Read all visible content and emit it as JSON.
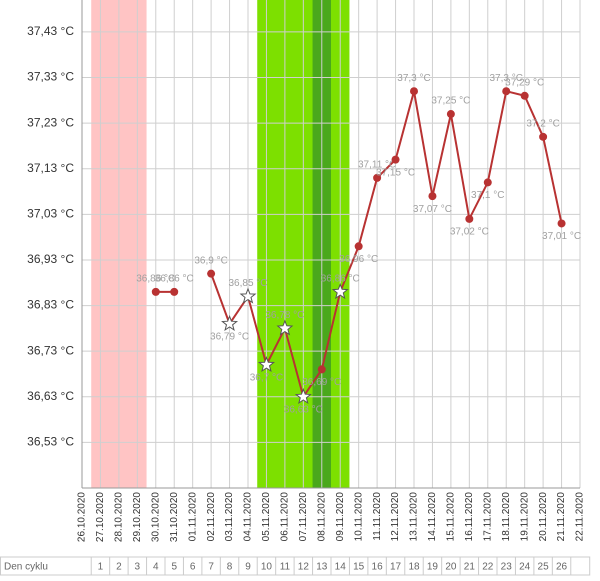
{
  "chart_data": {
    "type": "line",
    "categories": [
      "26.10.2020",
      "27.10.2020",
      "28.10.2020",
      "29.10.2020",
      "30.10.2020",
      "31.10.2020",
      "01.11.2020",
      "02.11.2020",
      "03.11.2020",
      "04.11.2020",
      "05.11.2020",
      "06.11.2020",
      "07.11.2020",
      "08.11.2020",
      "09.11.2020",
      "10.11.2020",
      "11.11.2020",
      "12.11.2020",
      "13.11.2020",
      "14.11.2020",
      "15.11.2020",
      "16.11.2020",
      "17.11.2020",
      "18.11.2020",
      "19.11.2020",
      "20.11.2020",
      "21.11.2020",
      "22.11.2020"
    ],
    "series": [
      {
        "color": "#b83232",
        "values": [
          null,
          null,
          null,
          null,
          36.86,
          36.86,
          null,
          36.9,
          36.79,
          36.85,
          36.7,
          36.78,
          36.63,
          36.69,
          36.86,
          36.96,
          37.11,
          37.15,
          37.3,
          37.07,
          37.25,
          37.02,
          37.1,
          37.3,
          37.29,
          37.2,
          37.01,
          null
        ],
        "value_labels": [
          null,
          null,
          null,
          null,
          "36,86 °C",
          "36,86 °C",
          null,
          "36,9 °C",
          "36,79 °C",
          "36,85 °C",
          "36,7 °C",
          "36,78 °C",
          "36,63 °C",
          "36,69 °C",
          "36,86 °C",
          "36,96 °C",
          "37,11 °C",
          "37,15 °C",
          "37,3 °C",
          "37,07 °C",
          "37,25 °C",
          "37,02 °C",
          "37,1 °C",
          "37,3 °C",
          "37,29 °C",
          "37,2 °C",
          "37,01 °C",
          null
        ],
        "markers": [
          null,
          null,
          null,
          null,
          "circle",
          "circle",
          null,
          "circle",
          "star",
          "star",
          "star",
          "star",
          "star",
          "circle",
          "star",
          "circle",
          "circle",
          "circle",
          "circle",
          "circle",
          "circle",
          "circle",
          "circle",
          "circle",
          "circle",
          "circle",
          "circle",
          null
        ]
      }
    ],
    "ylim": [
      36.43,
      37.5
    ],
    "yticks": [
      {
        "value": 36.53,
        "label": "36,53 °C"
      },
      {
        "value": 36.63,
        "label": "36,63 °C"
      },
      {
        "value": 36.73,
        "label": "36,73 °C"
      },
      {
        "value": 36.83,
        "label": "36,83 °C"
      },
      {
        "value": 36.93,
        "label": "36,93 °C"
      },
      {
        "value": 37.03,
        "label": "37,03 °C"
      },
      {
        "value": 37.13,
        "label": "37,13 °C"
      },
      {
        "value": 37.23,
        "label": "37,23 °C"
      },
      {
        "value": 37.33,
        "label": "37,33 °C"
      },
      {
        "value": 37.43,
        "label": "37,43 °C"
      }
    ],
    "grid": true,
    "bands": [
      {
        "from": 1,
        "to": 3,
        "color": "#ffc4c4"
      },
      {
        "from": 10,
        "to": 14,
        "color": "#7de000"
      },
      {
        "from": 13,
        "to": 13,
        "color": "#4aa81c"
      }
    ],
    "cycle_label": "Den cyklu",
    "cycle_days": [
      1,
      2,
      3,
      4,
      5,
      6,
      7,
      8,
      9,
      10,
      11,
      12,
      13,
      14,
      15,
      16,
      17,
      18,
      19,
      20,
      21,
      22,
      23,
      24,
      25,
      26
    ]
  }
}
